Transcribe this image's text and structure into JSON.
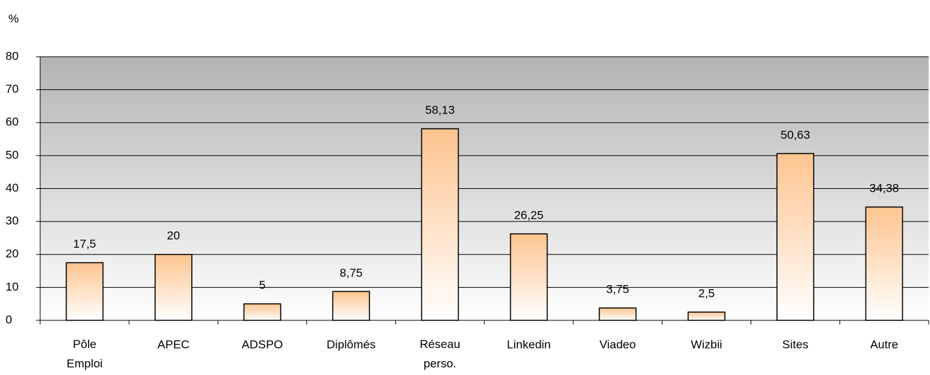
{
  "chart_data": {
    "type": "bar",
    "y_label": "%",
    "categories": [
      "Pôle Emploi",
      "APEC",
      "ADSPO",
      "Diplômés",
      "Réseau perso.",
      "Linkedin",
      "Viadeo",
      "Wizbii",
      "Sites",
      "Autre"
    ],
    "values": [
      17.5,
      20,
      5,
      8.75,
      58.13,
      26.25,
      3.75,
      2.5,
      50.63,
      34.38
    ],
    "value_labels": [
      "17,5",
      "20",
      "5",
      "8,75",
      "58,13",
      "26,25",
      "3,75",
      "2,5",
      "50,63",
      "34,38"
    ],
    "color": "#fdc48f",
    "ylim": [
      0,
      80
    ],
    "yticks": [
      0,
      10,
      20,
      30,
      40,
      50,
      60,
      70,
      80
    ],
    "grid": true
  }
}
